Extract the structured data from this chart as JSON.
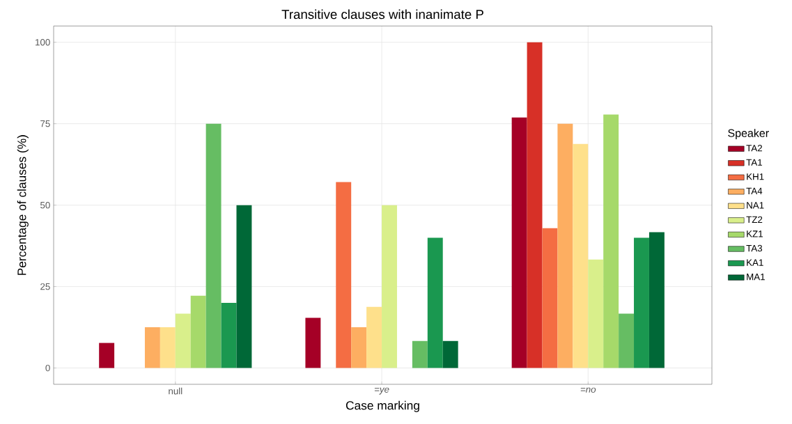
{
  "chart_data": {
    "type": "bar",
    "title": "Transitive clauses with inanimate P",
    "xlabel": "Case marking",
    "ylabel": "Percentage of clauses (%)",
    "legend_title": "Speaker",
    "categories": [
      "null",
      "*=ye*",
      "*=no*"
    ],
    "series": [
      {
        "name": "TA2",
        "color": "#a50026",
        "values": [
          7.7,
          15.4,
          76.9
        ]
      },
      {
        "name": "TA1",
        "color": "#d73027",
        "values": [
          null,
          null,
          100
        ]
      },
      {
        "name": "KH1",
        "color": "#f46d43",
        "values": [
          null,
          57.1,
          42.9
        ]
      },
      {
        "name": "TA4",
        "color": "#fdae61",
        "values": [
          12.5,
          12.5,
          75
        ]
      },
      {
        "name": "NA1",
        "color": "#fee08b",
        "values": [
          12.5,
          18.8,
          68.8
        ]
      },
      {
        "name": "TZ2",
        "color": "#d9ef8b",
        "values": [
          16.7,
          50,
          33.3
        ]
      },
      {
        "name": "KZ1",
        "color": "#a6d96a",
        "values": [
          22.2,
          null,
          77.8
        ]
      },
      {
        "name": "TA3",
        "color": "#66bd63",
        "values": [
          75,
          8.3,
          16.7
        ]
      },
      {
        "name": "KA1",
        "color": "#1a9850",
        "values": [
          20,
          40,
          40
        ]
      },
      {
        "name": "MA1",
        "color": "#006837",
        "values": [
          50,
          8.3,
          41.7
        ]
      }
    ],
    "ylim": [
      -5,
      105
    ],
    "yticks": [
      0,
      25,
      50,
      75,
      100
    ],
    "grid": true,
    "legend": "right"
  }
}
